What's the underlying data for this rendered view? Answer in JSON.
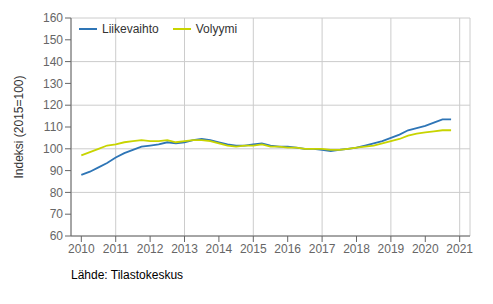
{
  "chart_data": {
    "type": "line",
    "ylabel": "Indeksi (2015=100)",
    "annotations": [
      "Lähde: Tilastokeskus"
    ],
    "x": [
      2010,
      2010.25,
      2010.5,
      2010.75,
      2011,
      2011.25,
      2011.5,
      2011.75,
      2012,
      2012.25,
      2012.5,
      2012.75,
      2013,
      2013.25,
      2013.5,
      2013.75,
      2014,
      2014.25,
      2014.5,
      2014.75,
      2015,
      2015.25,
      2015.5,
      2015.75,
      2016,
      2016.25,
      2016.5,
      2016.75,
      2017,
      2017.25,
      2017.5,
      2017.75,
      2018,
      2018.25,
      2018.5,
      2018.75,
      2019,
      2019.25,
      2019.5,
      2019.75,
      2020,
      2020.25,
      2020.5,
      2020.75
    ],
    "series": [
      {
        "name": "Liikevaihto",
        "color": "#2e75b6",
        "values": [
          88.0,
          89.5,
          91.5,
          93.5,
          96.0,
          98.0,
          99.5,
          101.0,
          101.5,
          102.0,
          103.0,
          102.5,
          103.0,
          104.0,
          104.5,
          104.0,
          103.0,
          102.0,
          101.5,
          101.5,
          102.0,
          102.5,
          101.5,
          101.0,
          101.0,
          100.5,
          100.0,
          100.0,
          99.5,
          99.0,
          99.5,
          100.0,
          100.5,
          101.5,
          102.5,
          103.5,
          105.0,
          106.5,
          108.5,
          109.5,
          110.5,
          112.0,
          113.5,
          113.5
        ]
      },
      {
        "name": "Volyymi",
        "color": "#c8d400",
        "values": [
          97.0,
          98.5,
          100.0,
          101.5,
          102.0,
          103.0,
          103.5,
          104.0,
          103.5,
          103.5,
          104.0,
          103.0,
          103.5,
          104.0,
          104.0,
          103.5,
          102.5,
          101.5,
          101.0,
          101.5,
          101.5,
          102.0,
          101.0,
          101.0,
          100.5,
          100.5,
          100.0,
          100.0,
          100.0,
          99.5,
          99.5,
          100.0,
          100.5,
          101.0,
          101.5,
          102.5,
          103.5,
          104.5,
          106.0,
          107.0,
          107.5,
          108.0,
          108.5,
          108.5
        ]
      }
    ],
    "xlim": [
      2009.7,
      2021.3
    ],
    "xticks": [
      2010,
      2011,
      2012,
      2013,
      2014,
      2015,
      2016,
      2017,
      2018,
      2019,
      2020,
      2021
    ],
    "ylim": [
      60,
      160
    ],
    "yticks": [
      60,
      70,
      80,
      90,
      100,
      110,
      120,
      130,
      140,
      150,
      160
    ],
    "grid": true,
    "legend": "upper left"
  }
}
